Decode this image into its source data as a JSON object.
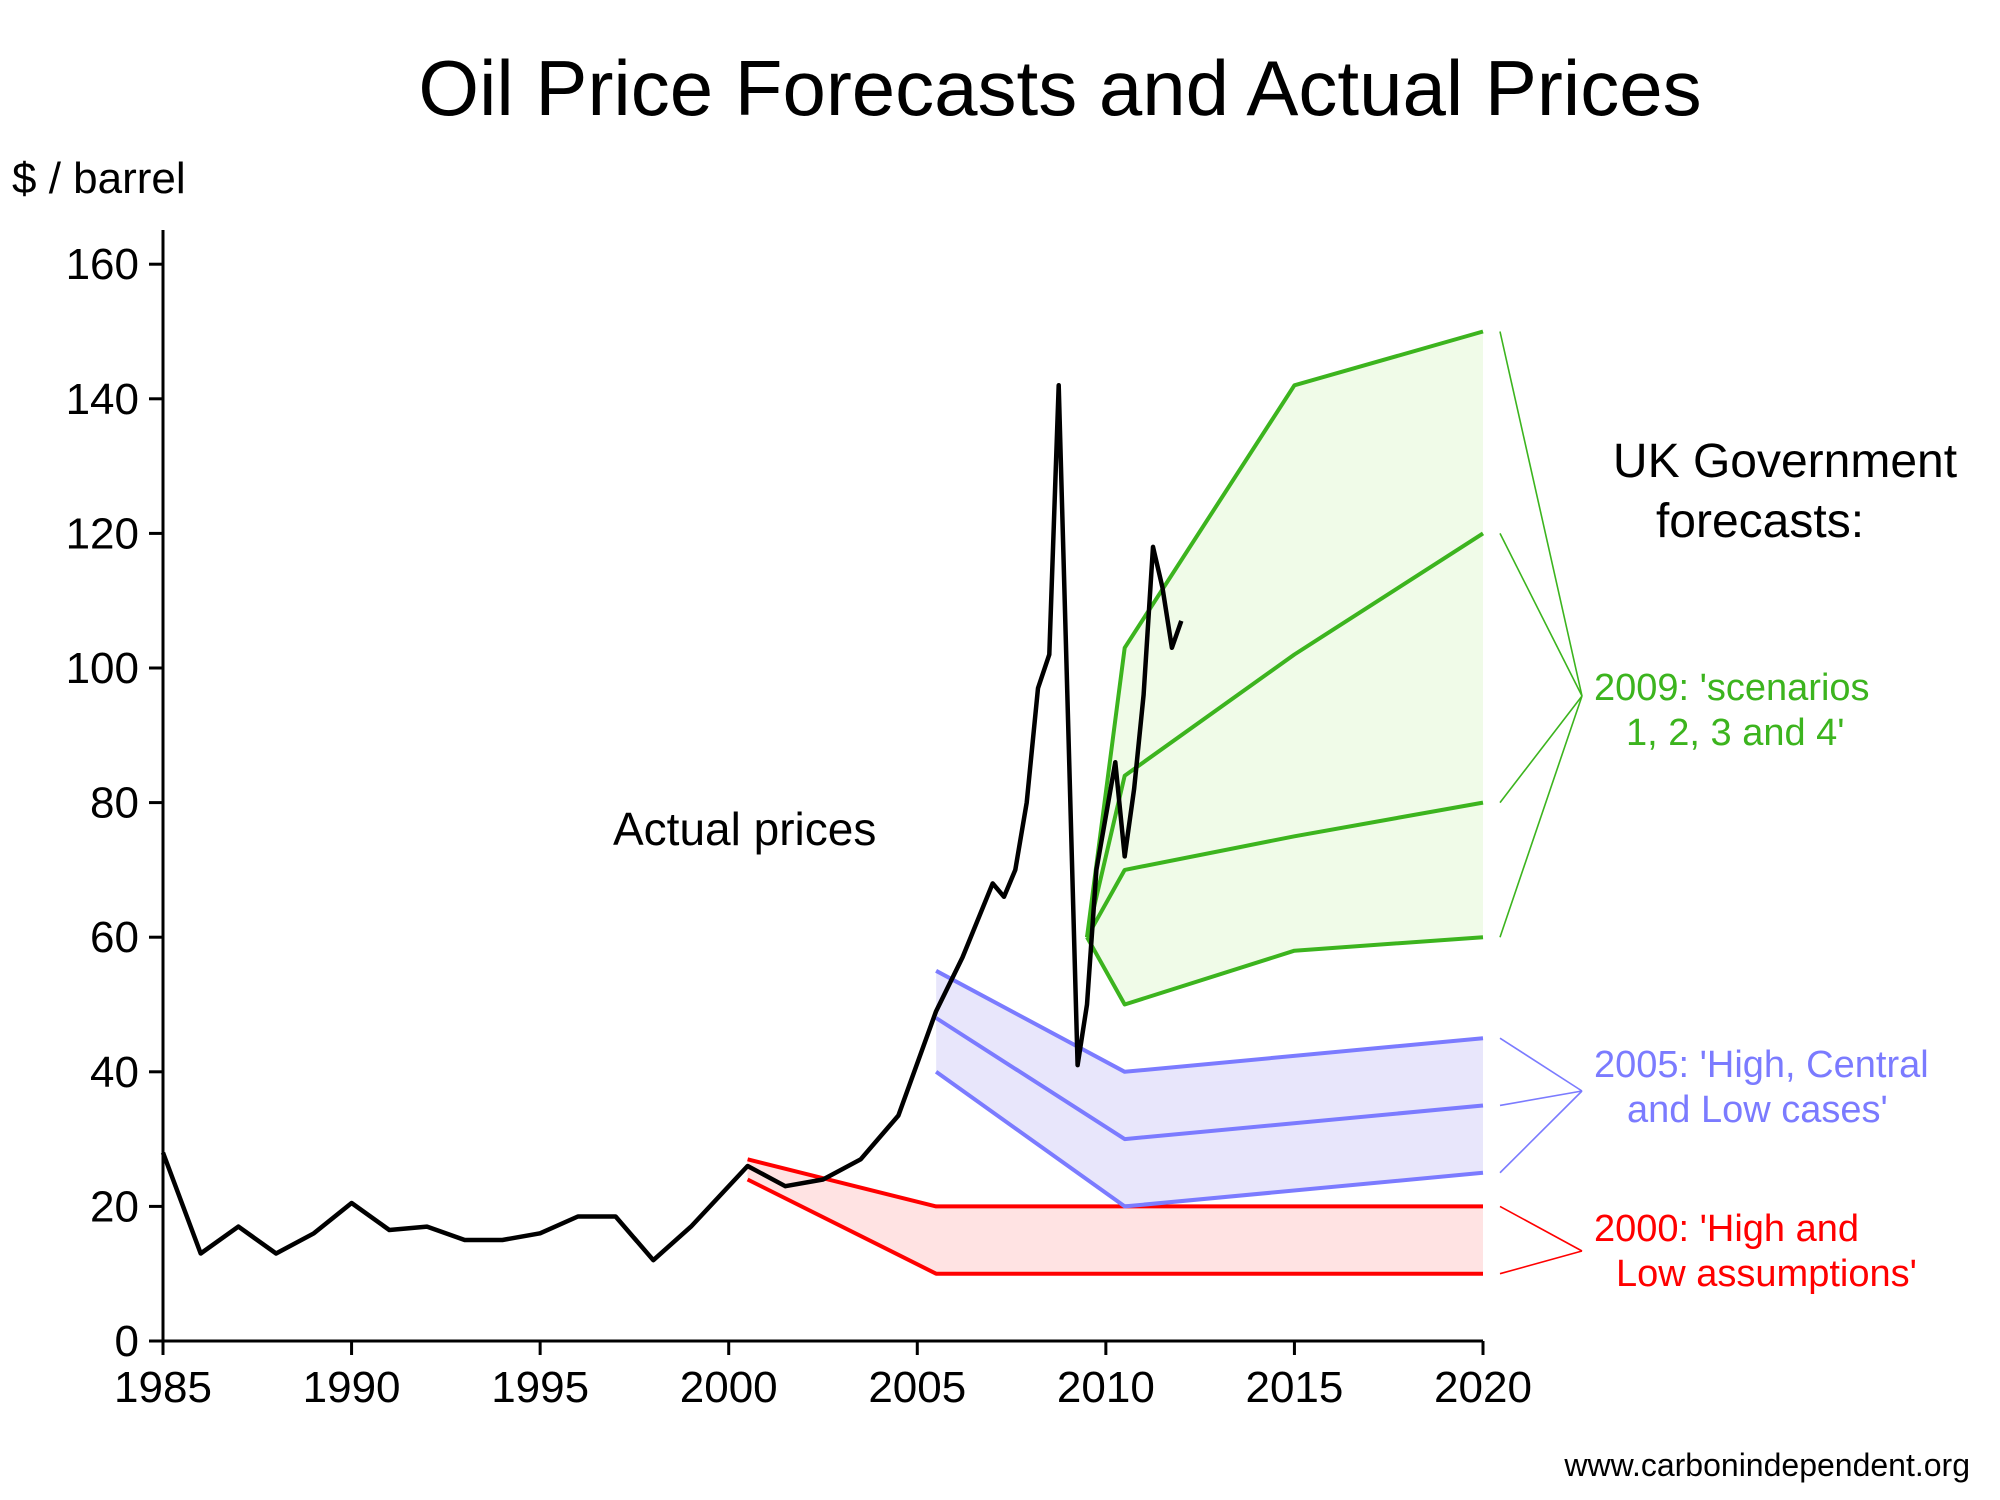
{
  "chart_data": {
    "type": "line",
    "title": "Oil Price Forecasts and Actual Prices",
    "ylabel": "$ / barrel",
    "xlabel": "",
    "xlim": [
      1985,
      2020
    ],
    "ylim": [
      0,
      165
    ],
    "xticks": [
      1985,
      1990,
      1995,
      2000,
      2005,
      2010,
      2015,
      2020
    ],
    "yticks": [
      0,
      20,
      40,
      60,
      80,
      100,
      120,
      140,
      160
    ],
    "xtick_labels": [
      "1985",
      "1990",
      "1995",
      "2000",
      "2005",
      "2010",
      "2015",
      "2020"
    ],
    "ytick_labels": [
      "0",
      "20",
      "40",
      "60",
      "80",
      "100",
      "120",
      "140",
      "160"
    ],
    "grid": false,
    "actual": {
      "label": "Actual prices",
      "color": "#000000",
      "x": [
        1985,
        1986,
        1987,
        1988,
        1989,
        1990,
        1991,
        1992,
        1993,
        1994,
        1995,
        1996,
        1997,
        1998,
        1999,
        2000.5,
        2001.5,
        2002.5,
        2003.5,
        2004.5,
        2005.5,
        2006.2,
        2007,
        2007.3,
        2007.6,
        2007.9,
        2008.2,
        2008.5,
        2008.75,
        2009,
        2009.25,
        2009.5,
        2009.75,
        2010.25,
        2010.5,
        2010.75,
        2011,
        2011.25,
        2011.5,
        2011.75,
        2012
      ],
      "y": [
        28,
        13,
        17,
        13,
        16,
        20.5,
        16.5,
        17,
        15,
        15,
        16,
        18.5,
        18.5,
        12,
        17,
        26,
        23,
        24,
        27,
        33.5,
        49,
        57,
        68,
        66,
        70,
        80,
        97,
        102,
        142,
        92,
        41,
        50,
        70,
        86,
        72,
        82,
        96,
        118,
        112,
        103,
        107
      ]
    },
    "forecast_groups": [
      {
        "label": "2000: 'High and Low assumptions'",
        "label_lines": [
          "2000: 'High and",
          "Low assumptions'"
        ],
        "color": "#ff0000",
        "fill": "#ffe3e3",
        "series": [
          {
            "x": [
              2000.5,
              2005.5,
              2020
            ],
            "y": [
              27,
              20,
              20
            ]
          },
          {
            "x": [
              2000.5,
              2005.5,
              2020
            ],
            "y": [
              24,
              10,
              10
            ]
          }
        ]
      },
      {
        "label": "2005: 'High, Central and Low cases'",
        "label_lines": [
          "2005: 'High, Central",
          "and Low cases'"
        ],
        "color": "#7b7bff",
        "fill": "#e8e6fb",
        "series": [
          {
            "x": [
              2005.5,
              2010.5,
              2020
            ],
            "y": [
              55,
              40,
              45
            ]
          },
          {
            "x": [
              2005.5,
              2010.5,
              2020
            ],
            "y": [
              48,
              30,
              35
            ]
          },
          {
            "x": [
              2005.5,
              2010.5,
              2020
            ],
            "y": [
              40,
              20,
              25
            ]
          }
        ]
      },
      {
        "label": "2009: 'scenarios 1, 2, 3 and 4'",
        "label_lines": [
          "2009: 'scenarios",
          "1, 2, 3 and 4'"
        ],
        "color": "#3cb41e",
        "fill": "#f0fbe8",
        "series": [
          {
            "x": [
              2009.5,
              2010.5,
              2015,
              2020
            ],
            "y": [
              60,
              103,
              142,
              150
            ]
          },
          {
            "x": [
              2009.5,
              2010.5,
              2015,
              2020
            ],
            "y": [
              60,
              84,
              102,
              120
            ]
          },
          {
            "x": [
              2009.5,
              2010.5,
              2015,
              2020
            ],
            "y": [
              60,
              70,
              75,
              80
            ]
          },
          {
            "x": [
              2009.5,
              2010.5,
              2015,
              2020
            ],
            "y": [
              60,
              50,
              58,
              60
            ]
          }
        ]
      }
    ],
    "annotations": {
      "forecasts_heading": [
        "UK Government",
        "forecasts:"
      ],
      "source": "www.carbonindependent.org"
    }
  }
}
